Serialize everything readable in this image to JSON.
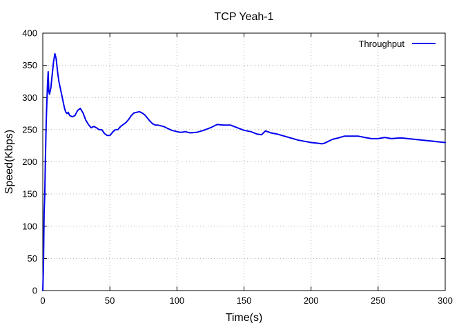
{
  "chart_data": {
    "type": "line",
    "title": "TCP Yeah-1",
    "xlabel": "Time(s)",
    "ylabel": "Speed(Kbps)",
    "xlim": [
      0,
      300
    ],
    "ylim": [
      0,
      400
    ],
    "xticks": [
      0,
      50,
      100,
      150,
      200,
      250,
      300
    ],
    "yticks": [
      0,
      50,
      100,
      150,
      200,
      250,
      300,
      350,
      400
    ],
    "grid": true,
    "legend_position": "top-right",
    "series": [
      {
        "name": "Throughput",
        "color": "#0000ee",
        "x": [
          0,
          0.5,
          1,
          1.5,
          2,
          2.5,
          3,
          3.5,
          4,
          4.5,
          5,
          6,
          7,
          8,
          9,
          10,
          11,
          12,
          13,
          14,
          15,
          16,
          17,
          18,
          19,
          20,
          22,
          24,
          26,
          28,
          30,
          32,
          34,
          36,
          38,
          40,
          42,
          44,
          46,
          48,
          50,
          52,
          54,
          56,
          58,
          60,
          62,
          64,
          66,
          68,
          70,
          72,
          74,
          76,
          78,
          80,
          82,
          84,
          86,
          88,
          90,
          92,
          94,
          96,
          98,
          100,
          102,
          104,
          106,
          108,
          110,
          115,
          120,
          125,
          130,
          135,
          140,
          145,
          150,
          155,
          160,
          163,
          166,
          170,
          175,
          180,
          185,
          190,
          195,
          200,
          205,
          208,
          210,
          213,
          216,
          220,
          225,
          230,
          235,
          240,
          245,
          250,
          255,
          260,
          265,
          268,
          300
        ],
        "y": [
          0,
          40,
          120,
          150,
          210,
          260,
          290,
          320,
          340,
          310,
          305,
          315,
          335,
          355,
          368,
          360,
          340,
          325,
          315,
          305,
          295,
          285,
          278,
          275,
          277,
          272,
          270,
          272,
          280,
          283,
          276,
          265,
          258,
          253,
          255,
          253,
          250,
          250,
          244,
          241,
          241,
          246,
          250,
          250,
          255,
          258,
          261,
          266,
          272,
          276,
          277,
          278,
          276,
          273,
          268,
          263,
          259,
          257,
          257,
          256,
          255,
          253,
          251,
          249,
          248,
          247,
          246,
          246,
          247,
          246,
          245,
          246,
          249,
          253,
          258,
          257,
          257,
          253,
          249,
          247,
          243,
          242,
          248,
          245,
          243,
          240,
          237,
          234,
          232,
          230,
          229,
          228,
          229,
          232,
          235,
          237,
          240,
          240,
          240,
          238,
          236,
          236,
          238,
          236,
          237,
          237,
          230
        ]
      }
    ]
  }
}
